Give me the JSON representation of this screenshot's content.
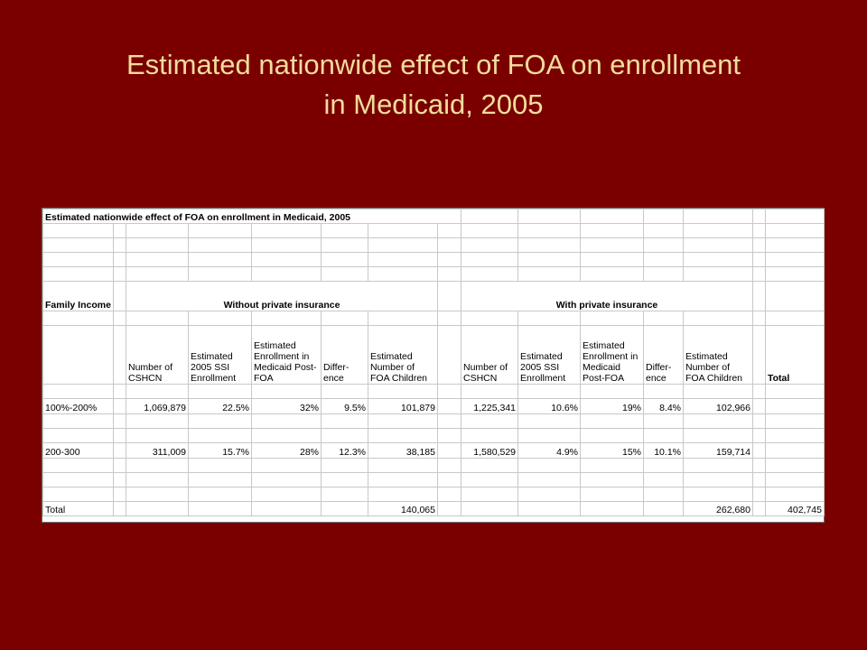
{
  "slide": {
    "title_line1": "Estimated nationwide effect of FOA on enrollment",
    "title_line2": "in Medicaid, 2005"
  },
  "sheet": {
    "caption": "Estimated nationwide effect of FOA on enrollment in Medicaid, 2005",
    "family_income_label": "Family Income",
    "group_without": "Without private insurance",
    "group_with": "With private insurance",
    "col_headers": {
      "number_cshcn": "Number of CSHCN",
      "ssi": "Estimated 2005 SSI Enrollment",
      "medicaid_post_foa": "Estimated Enrollment in Medicaid Post-FOA",
      "difference": "Differ- ence",
      "foa_children": "Estimated Number of FOA Children",
      "total": "Total"
    },
    "rows": [
      {
        "income": "100%-200%",
        "wo_cshcn": "1,069,879",
        "wo_ssi": "22.5%",
        "wo_medicaid": "32%",
        "wo_diff": "9.5%",
        "wo_foa": "101,879",
        "w_cshcn": "1,225,341",
        "w_ssi": "10.6%",
        "w_medicaid": "19%",
        "w_diff": "8.4%",
        "w_foa": "102,966"
      },
      {
        "income": "200-300",
        "wo_cshcn": "311,009",
        "wo_ssi": "15.7%",
        "wo_medicaid": "28%",
        "wo_diff": "12.3%",
        "wo_foa": "38,185",
        "w_cshcn": "1,580,529",
        "w_ssi": "4.9%",
        "w_medicaid": "15%",
        "w_diff": "10.1%",
        "w_foa": "159,714"
      }
    ],
    "total_row": {
      "label": "Total",
      "wo_foa": "140,065",
      "w_foa": "262,680",
      "grand_total": "402,745"
    }
  },
  "colors": {
    "background": "#7a0000",
    "title_text": "#f3dc9d"
  }
}
